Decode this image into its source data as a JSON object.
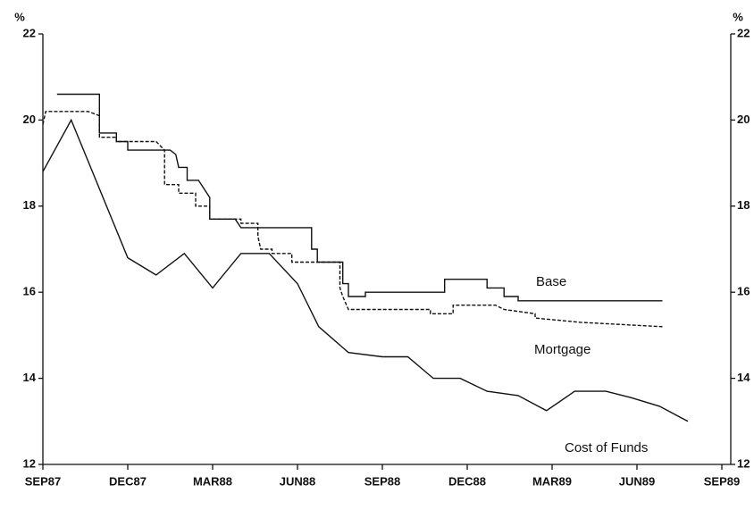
{
  "chart_data": {
    "type": "line",
    "ylabel": "%",
    "y2label": "%",
    "xlim": [
      0,
      24
    ],
    "xticks": [
      {
        "value": 0,
        "label": "SEP87"
      },
      {
        "value": 3,
        "label": "DEC87"
      },
      {
        "value": 6,
        "label": "MAR88"
      },
      {
        "value": 9,
        "label": "JUN88"
      },
      {
        "value": 12,
        "label": "SEP88"
      },
      {
        "value": 15,
        "label": "DEC88"
      },
      {
        "value": 18,
        "label": "MAR89"
      },
      {
        "value": 21,
        "label": "JUN89"
      },
      {
        "value": 24,
        "label": "SEP89"
      }
    ],
    "ylim": [
      12,
      22
    ],
    "yticks": [
      12,
      14,
      16,
      18,
      20,
      22
    ],
    "y2lim": [
      12,
      22
    ],
    "y2ticks": [
      12,
      14,
      16,
      18,
      20,
      22
    ],
    "series": [
      {
        "name": "Base",
        "color": "#111111",
        "style": "solid",
        "x": [
          0.5,
          2,
          2,
          2.6,
          2.6,
          3,
          3,
          4.5,
          4.7,
          4.8,
          5.1,
          5.1,
          5.5,
          5.7,
          5.9,
          5.9,
          6.8,
          7,
          7.5,
          7.5,
          9.5,
          9.5,
          9.7,
          9.7,
          10.6,
          10.6,
          10.8,
          10.8,
          11.4,
          11.4,
          14.2,
          14.2,
          15.7,
          15.7,
          16.3,
          16.3,
          16.8,
          16.8,
          21.9
        ],
        "values": [
          20.6,
          20.6,
          19.7,
          19.7,
          19.5,
          19.5,
          19.3,
          19.3,
          19.2,
          18.9,
          18.9,
          18.6,
          18.6,
          18.4,
          18.2,
          17.7,
          17.7,
          17.5,
          17.5,
          17.5,
          17.5,
          17.0,
          17.0,
          16.7,
          16.7,
          16.2,
          16.2,
          15.9,
          15.9,
          16.0,
          16.0,
          16.3,
          16.3,
          16.1,
          16.1,
          15.9,
          15.9,
          15.8,
          15.8
        ]
      },
      {
        "name": "Mortgage",
        "color": "#111111",
        "style": "dashed",
        "x": [
          0,
          0.1,
          1.6,
          2,
          2,
          2.6,
          2.6,
          4,
          4.3,
          4.3,
          4.8,
          4.8,
          5.4,
          5.4,
          5.9,
          5.9,
          7,
          7,
          7.6,
          7.6,
          7.7,
          8.1,
          8.1,
          8.8,
          8.8,
          10.5,
          10.5,
          10.6,
          10.8,
          13.7,
          13.7,
          14.5,
          14.5,
          16,
          16.3,
          17.4,
          17.4,
          19,
          21.9
        ],
        "values": [
          19.9,
          20.2,
          20.2,
          20.1,
          19.6,
          19.6,
          19.5,
          19.5,
          19.3,
          18.5,
          18.5,
          18.3,
          18.3,
          18.0,
          18.0,
          17.7,
          17.7,
          17.6,
          17.6,
          17.3,
          17.0,
          17.0,
          16.9,
          16.9,
          16.7,
          16.7,
          16.1,
          15.9,
          15.6,
          15.6,
          15.5,
          15.5,
          15.7,
          15.7,
          15.6,
          15.5,
          15.4,
          15.3,
          15.2
        ]
      },
      {
        "name": "Cost of Funds",
        "color": "#111111",
        "style": "solid",
        "x": [
          0,
          1,
          3,
          4,
          5,
          6,
          7,
          8,
          9,
          9.75,
          10.8,
          12,
          12.9,
          13.8,
          14.75,
          15.7,
          16.8,
          17.8,
          18.8,
          19.9,
          20.8,
          21.8,
          22.8
        ],
        "values": [
          18.8,
          20.0,
          16.8,
          16.4,
          16.9,
          16.1,
          16.9,
          16.9,
          16.2,
          15.2,
          14.6,
          14.5,
          14.5,
          14.0,
          14.0,
          13.7,
          13.6,
          13.25,
          13.7,
          13.7,
          13.55,
          13.35,
          13.0
        ]
      }
    ]
  }
}
